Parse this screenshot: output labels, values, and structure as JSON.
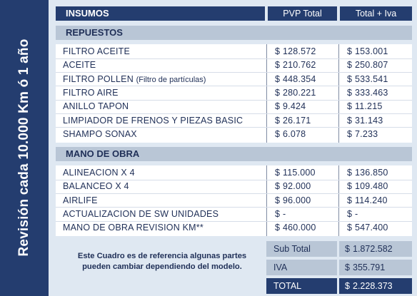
{
  "sidebar": {
    "title": "Revisión cada 10.000 Km ó 1 año"
  },
  "header": {
    "insumos": "INSUMOS",
    "pvp_total": "PVP Total",
    "total_iva": "Total + Iva"
  },
  "repuestos": {
    "title": "REPUESTOS",
    "rows": [
      {
        "name": "FILTRO ACEITE",
        "name_note": "",
        "pvp": "128.572",
        "iva": "153.001"
      },
      {
        "name": "ACEITE",
        "name_note": "",
        "pvp": "210.762",
        "iva": "250.807"
      },
      {
        "name": "FILTRO POLLEN",
        "name_note": "(Filtro de partículas)",
        "pvp": "448.354",
        "iva": "533.541"
      },
      {
        "name": "FILTRO AIRE",
        "name_note": "",
        "pvp": "280.221",
        "iva": "333.463"
      },
      {
        "name": "ANILLO TAPON",
        "name_note": "",
        "pvp": "9.424",
        "iva": "11.215"
      },
      {
        "name": "LIMPIADOR DE FRENOS Y PIEZAS BASIC",
        "name_note": "",
        "pvp": "26.171",
        "iva": "31.143"
      },
      {
        "name": "SHAMPO SONAX",
        "name_note": "",
        "pvp": "6.078",
        "iva": "7.233"
      }
    ]
  },
  "mano_de_obra": {
    "title": "MANO DE OBRA",
    "rows": [
      {
        "name": "ALINEACION X 4",
        "pvp": "115.000",
        "iva": "136.850"
      },
      {
        "name": "BALANCEO X 4",
        "pvp": "92.000",
        "iva": "109.480"
      },
      {
        "name": "AIRLIFE",
        "pvp": "96.000",
        "iva": "114.240"
      },
      {
        "name": "ACTUALIZACION DE SW UNIDADES",
        "pvp": "-",
        "iva": "-"
      },
      {
        "name": "MANO DE OBRA REVISION KM**",
        "pvp": "460.000",
        "iva": "547.400"
      }
    ]
  },
  "currency": "$",
  "note": "Este Cuadro es de referencia algunas partes pueden cambiar dependiendo del modelo.",
  "summary": {
    "subtotal_label": "Sub Total",
    "subtotal_value": "1.872.582",
    "iva_label": "IVA",
    "iva_value": "355.791",
    "total_label": "TOTAL",
    "total_value": "2.228.373"
  },
  "colors": {
    "navy": "#243d6f",
    "section_gray": "#b9c6d6",
    "background": "#dfe8f2"
  }
}
